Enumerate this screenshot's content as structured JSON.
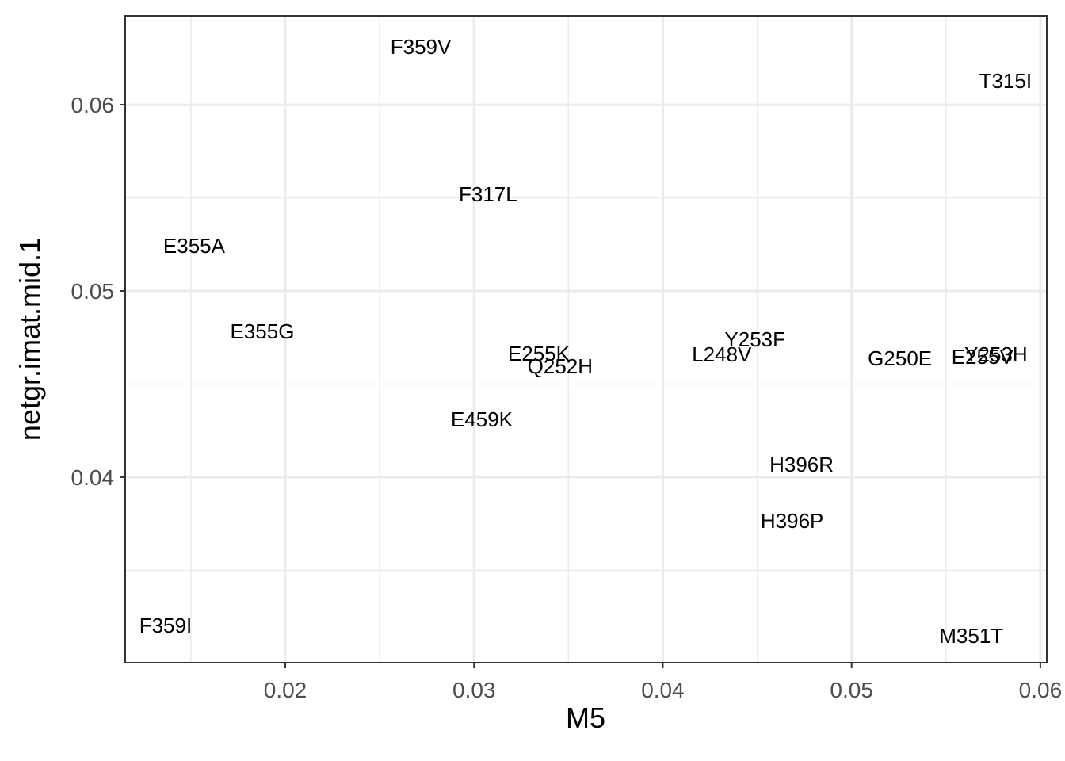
{
  "chart_data": {
    "type": "scatter",
    "x_label": "M5",
    "y_label": "netgr.imat.mid.1",
    "labels": [
      "F359V",
      "T315I",
      "F317L",
      "E355A",
      "E355G",
      "Y253F",
      "E255K",
      "Q252H",
      "L248V",
      "G250E",
      "E255V",
      "Y253H",
      "E459K",
      "H396R",
      "H396P",
      "F359I",
      "M351T"
    ],
    "x": [
      0.02718,
      0.05815,
      0.03074,
      0.01517,
      0.01878,
      0.04488,
      0.03343,
      0.03456,
      0.04312,
      0.05256,
      0.05693,
      0.05765,
      0.03041,
      0.04735,
      0.04685,
      0.01366,
      0.05634
    ],
    "y": [
      0.06311,
      0.06128,
      0.05519,
      0.05243,
      0.04783,
      0.0474,
      0.04664,
      0.04596,
      0.0466,
      0.04638,
      0.04647,
      0.0466,
      0.04311,
      0.04068,
      0.03766,
      0.03204,
      0.03149
    ],
    "xlim": [
      0.01152,
      0.06034
    ],
    "ylim": [
      0.03004,
      0.06477
    ],
    "xticks": [
      {
        "value": 0.02,
        "label": "0.02"
      },
      {
        "value": 0.03,
        "label": "0.03"
      },
      {
        "value": 0.04,
        "label": "0.04"
      },
      {
        "value": 0.05,
        "label": "0.05"
      },
      {
        "value": 0.06,
        "label": "0.06"
      }
    ],
    "yticks": [
      {
        "value": 0.04,
        "label": "0.04"
      },
      {
        "value": 0.05,
        "label": "0.05"
      },
      {
        "value": 0.06,
        "label": "0.06"
      }
    ],
    "xminor": [
      0.015,
      0.025,
      0.035,
      0.045,
      0.055
    ],
    "yminor": [
      0.035,
      0.045,
      0.055
    ],
    "grid": true,
    "color": "#000000"
  }
}
